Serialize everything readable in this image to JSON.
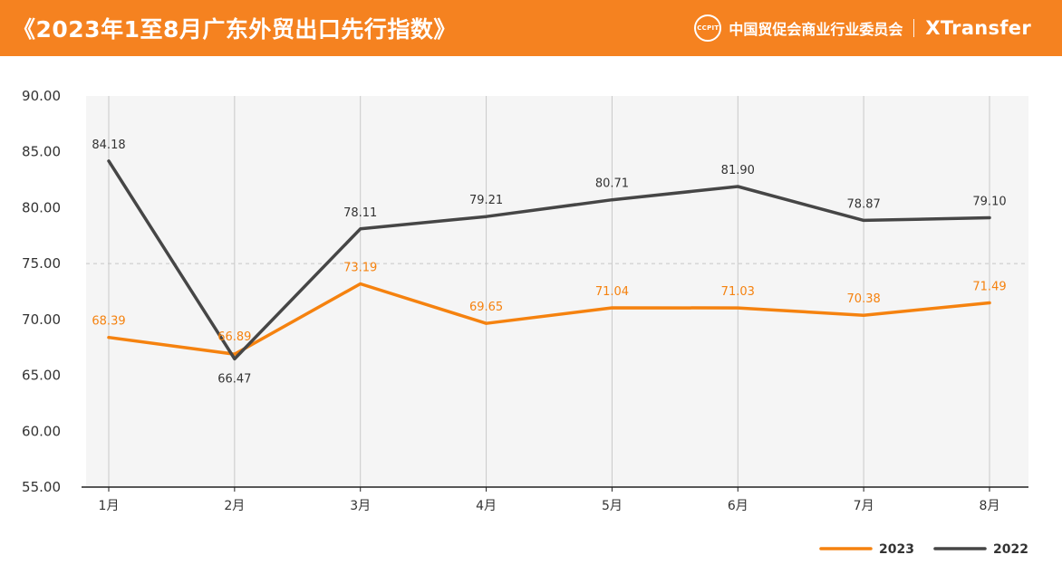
{
  "header": {
    "title": "《2023年1至8月广东外贸出口先行指数》",
    "seal_text": "CCPIT",
    "org": "中国贸促会商业行业委员会",
    "brand": "XTransfer"
  },
  "colors": {
    "header_bg": "#f58220",
    "series_2023": "#f5820f",
    "series_2022": "#464646",
    "plot_bg": "#f5f5f5"
  },
  "chart_data": {
    "type": "line",
    "categories": [
      "1月",
      "2月",
      "3月",
      "4月",
      "5月",
      "6月",
      "7月",
      "8月"
    ],
    "series": [
      {
        "name": "2023",
        "values": [
          68.39,
          66.89,
          73.19,
          69.65,
          71.04,
          71.03,
          70.38,
          71.49
        ]
      },
      {
        "name": "2022",
        "values": [
          84.18,
          66.47,
          78.11,
          79.21,
          80.71,
          81.9,
          78.87,
          79.1
        ]
      }
    ],
    "data_labels": {
      "2023": [
        "68.39",
        "66.89",
        "73.19",
        "69.65",
        "71.04",
        "71.03",
        "70.38",
        "71.49"
      ],
      "2022": [
        "84.18",
        "66.47",
        "78.11",
        "79.21",
        "80.71",
        "81.90",
        "78.87",
        "79.10"
      ]
    },
    "ylim": [
      55,
      90
    ],
    "yticks": [
      "55.00",
      "60.00",
      "65.00",
      "70.00",
      "75.00",
      "80.00",
      "85.00",
      "90.00"
    ],
    "title": "",
    "xlabel": "",
    "ylabel": "",
    "grid": "vertical lines at categories; dashed reference line at 75",
    "legend_position": "bottom-right"
  }
}
